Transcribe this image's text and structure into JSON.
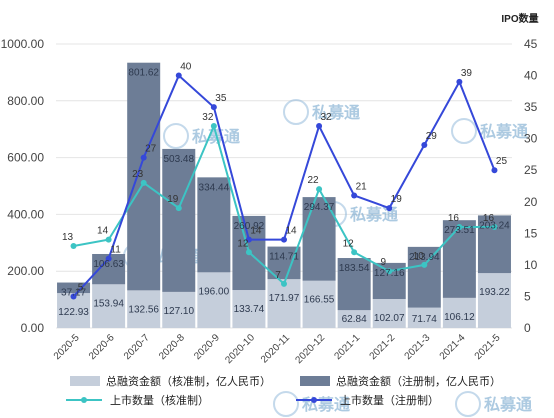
{
  "chart_data": {
    "type": "bar",
    "categories": [
      "2020-5",
      "2020-6",
      "2020-7",
      "2020-8",
      "2020-9",
      "2020-10",
      "2020-11",
      "2020-12",
      "2021-1",
      "2021-2",
      "2021-3",
      "2021-4",
      "2021-5"
    ],
    "y_left": {
      "ylim": [
        0,
        1000
      ],
      "ticks": [
        "0.00",
        "200.00",
        "400.00",
        "600.00",
        "800.00",
        "1000.00"
      ]
    },
    "y_right": {
      "label": "IPO数量",
      "ylim": [
        0,
        45
      ],
      "ticks": [
        "0",
        "5",
        "10",
        "15",
        "20",
        "25",
        "30",
        "35",
        "40",
        "45"
      ]
    },
    "series": [
      {
        "name": "总融资金额（核准制，亿人民币）",
        "type": "bar",
        "axis": "left",
        "color": "#c5cedb",
        "values": [
          122.93,
          153.94,
          132.56,
          127.1,
          196.0,
          133.74,
          171.97,
          166.55,
          62.84,
          102.07,
          71.74,
          106.12,
          193.22
        ],
        "labels": [
          "122.93",
          "153.94",
          "132.56",
          "127.10",
          "196.00",
          "133.74",
          "171.97",
          "166.55",
          "62.84",
          "102.07",
          "71.74",
          "106.12",
          "193.22"
        ]
      },
      {
        "name": "总融资金额（注册制，亿人民币）",
        "type": "bar",
        "axis": "left",
        "color": "#6d7d96",
        "values": [
          37.17,
          106.63,
          801.62,
          503.48,
          334.44,
          260.92,
          114.71,
          294.37,
          183.54,
          127.16,
          213.94,
          273.51,
          203.24
        ],
        "labels": [
          "37.17",
          "106.63",
          "801.62",
          "503.48",
          "334.44",
          "260.92",
          "114.71",
          "294.37",
          "183.54",
          "127.16",
          "213.94",
          "273.51",
          "203.24"
        ]
      },
      {
        "name": "上市数量（核准制）",
        "type": "line",
        "axis": "right",
        "color": "#3cc4c4",
        "values": [
          13,
          14,
          23,
          19,
          32,
          12,
          7,
          22,
          12,
          9,
          10,
          16,
          16
        ],
        "labels": [
          "13",
          "14",
          "23",
          "19",
          "32",
          "12",
          "7",
          "22",
          "12",
          "9",
          "10",
          "16",
          "16"
        ]
      },
      {
        "name": "上市数量（注册制）",
        "type": "line",
        "axis": "right",
        "color": "#3548d9",
        "values": [
          5,
          11,
          27,
          40,
          35,
          14,
          14,
          32,
          21,
          19,
          29,
          39,
          25
        ],
        "labels": [
          "5",
          "11",
          "27",
          "40",
          "35",
          "14",
          "14",
          "32",
          "21",
          "19",
          "29",
          "39",
          "25"
        ]
      }
    ],
    "grid": true,
    "legend": "bottom"
  },
  "watermark": {
    "text": "私募通"
  }
}
